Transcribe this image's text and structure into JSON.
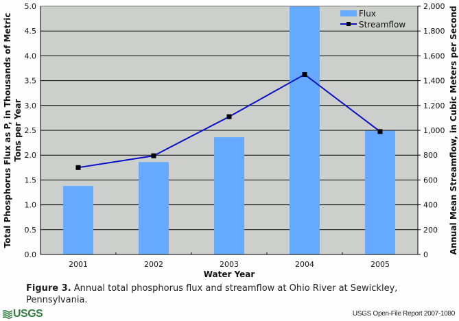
{
  "chart_data": {
    "type": "bar",
    "title": "",
    "categories": [
      "2001",
      "2002",
      "2003",
      "2004",
      "2005"
    ],
    "xlabel": "Water Year",
    "series": [
      {
        "name": "Flux",
        "type": "bar",
        "axis": "left",
        "color": "#66aaff",
        "values": [
          1.38,
          1.86,
          2.36,
          5.0,
          2.49
        ]
      },
      {
        "name": "Streamflow",
        "type": "line",
        "axis": "right",
        "color": "#0a10c8",
        "marker_color": "#000000",
        "values": [
          700,
          795,
          1110,
          1450,
          990
        ]
      }
    ],
    "y_left": {
      "label_line1": "Total Phosphorus Flux as P, in Thousands of Metric",
      "label_line2": "Tons per Year",
      "ylim": [
        0,
        5
      ],
      "ticks": [
        "0.0",
        "0.5",
        "1.0",
        "1.5",
        "2.0",
        "2.5",
        "3.0",
        "3.5",
        "4.0",
        "4.5",
        "5.0"
      ]
    },
    "y_right": {
      "label": "Annual Mean Streamflow, in Cubic Meters per Second",
      "ylim": [
        0,
        2000
      ],
      "ticks": [
        "0",
        "200",
        "400",
        "600",
        "800",
        "1,000",
        "1,200",
        "1,400",
        "1,600",
        "1,800",
        "2,000"
      ]
    },
    "grid": true,
    "legend": {
      "placement": "top-right",
      "entries": [
        "Flux",
        "Streamflow"
      ]
    },
    "plot_background": "#cccfcc"
  },
  "caption": {
    "label": "Figure 3.",
    "text": " Annual total phosphorus flux and streamflow at Ohio River at Sewickley, Pennsylvania."
  },
  "footer": {
    "logo": "USGS",
    "report": "USGS Open-File Report 2007-1080"
  }
}
